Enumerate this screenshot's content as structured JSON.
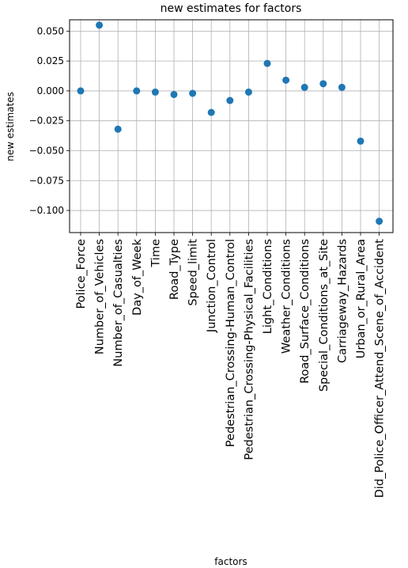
{
  "chart_data": {
    "type": "scatter",
    "title": "new estimates for factors",
    "xlabel": "factors",
    "ylabel": "new estimates",
    "categories": [
      "Police_Force",
      "Number_of_Vehicles",
      "Number_of_Casualties",
      "Day_of_Week",
      "Time",
      "Road_Type",
      "Speed_limit",
      "Junction_Control",
      "Pedestrian_Crossing-Human_Control",
      "Pedestrian_Crossing-Physical_Facilities",
      "Light_Conditions",
      "Weather_Conditions",
      "Road_Surface_Conditions",
      "Special_Conditions_at_Site",
      "Carriageway_Hazards",
      "Urban_or_Rural_Area",
      "Did_Police_Officer_Attend_Scene_of_Accident"
    ],
    "values": [
      0.0,
      0.055,
      -0.032,
      0.0,
      -0.001,
      -0.003,
      -0.002,
      -0.018,
      -0.008,
      -0.001,
      0.023,
      0.009,
      0.003,
      0.006,
      0.003,
      -0.042,
      -0.109
    ],
    "yticks": [
      0.05,
      0.025,
      0.0,
      -0.025,
      -0.05,
      -0.075,
      -0.1
    ],
    "ytick_labels": [
      "0.050",
      "0.025",
      "0.000",
      "−0.025",
      "−0.050",
      "−0.075",
      "−0.100"
    ],
    "ylim": [
      -0.1185,
      0.0595
    ],
    "grid": true,
    "marker_color": "#1f77b4"
  }
}
